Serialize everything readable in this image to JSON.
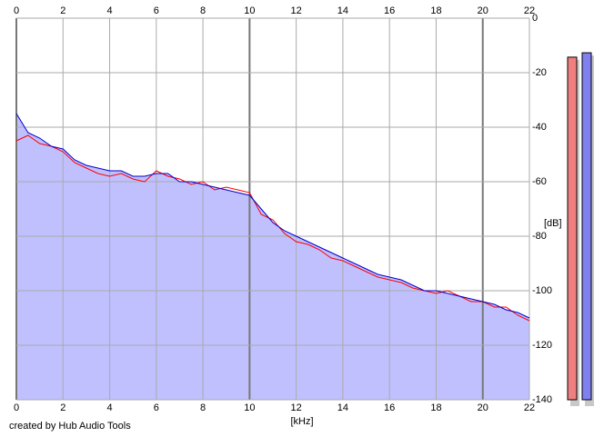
{
  "chart_data": {
    "type": "line",
    "x_label": "[kHz]",
    "y_label": "[dB]",
    "credit": "created by Hub Audio Tools",
    "x": [
      0,
      0.5,
      1,
      1.5,
      2,
      2.5,
      3,
      3.5,
      4,
      4.5,
      5,
      5.5,
      6,
      6.5,
      7,
      7.5,
      8,
      8.5,
      9,
      9.5,
      10,
      10.5,
      11,
      11.5,
      12,
      12.5,
      13,
      13.5,
      14,
      14.5,
      15,
      15.5,
      16,
      16.5,
      17,
      17.5,
      18,
      18.5,
      19,
      19.5,
      20,
      20.5,
      21,
      21.5,
      22
    ],
    "series": [
      {
        "color": "#ff0000",
        "values": [
          -45,
          -43,
          -46,
          -47,
          -49,
          -53,
          -55,
          -57,
          -58,
          -57,
          -59,
          -60,
          -56,
          -58,
          -59,
          -61,
          -60,
          -63,
          -62,
          -63,
          -64,
          -72,
          -74,
          -79,
          -82,
          -83,
          -85,
          -88,
          -89,
          -91,
          -93,
          -95,
          -96,
          -97,
          -99,
          -100,
          -101,
          -100,
          -102,
          -104,
          -104,
          -106,
          -106,
          -109,
          -111
        ]
      },
      {
        "color": "#0000cc",
        "fill_color": "#c0c0ff",
        "values": [
          -35,
          -42,
          -44,
          -47,
          -48,
          -52,
          -54,
          -55,
          -56,
          -56,
          -58,
          -58,
          -57,
          -57,
          -60,
          -60,
          -61,
          -62,
          -63,
          -64,
          -65,
          -70,
          -75,
          -78,
          -80,
          -82,
          -84,
          -86,
          -88,
          -90,
          -92,
          -94,
          -95,
          -96,
          -98,
          -100,
          -100,
          -101,
          -102,
          -103,
          -104,
          -105,
          -107,
          -108,
          -110
        ]
      }
    ],
    "xlim": [
      0,
      22
    ],
    "xticks": [
      0,
      2,
      4,
      6,
      8,
      10,
      12,
      14,
      16,
      18,
      20,
      22
    ],
    "ylim": [
      -140,
      0
    ],
    "yticks": [
      0,
      -20,
      -40,
      -60,
      -80,
      -100,
      -120,
      -140
    ],
    "grid": true,
    "meters": [
      {
        "color": "#f08080",
        "value": -14.3
      },
      {
        "color": "#8080f0",
        "value": -12.7
      }
    ]
  }
}
